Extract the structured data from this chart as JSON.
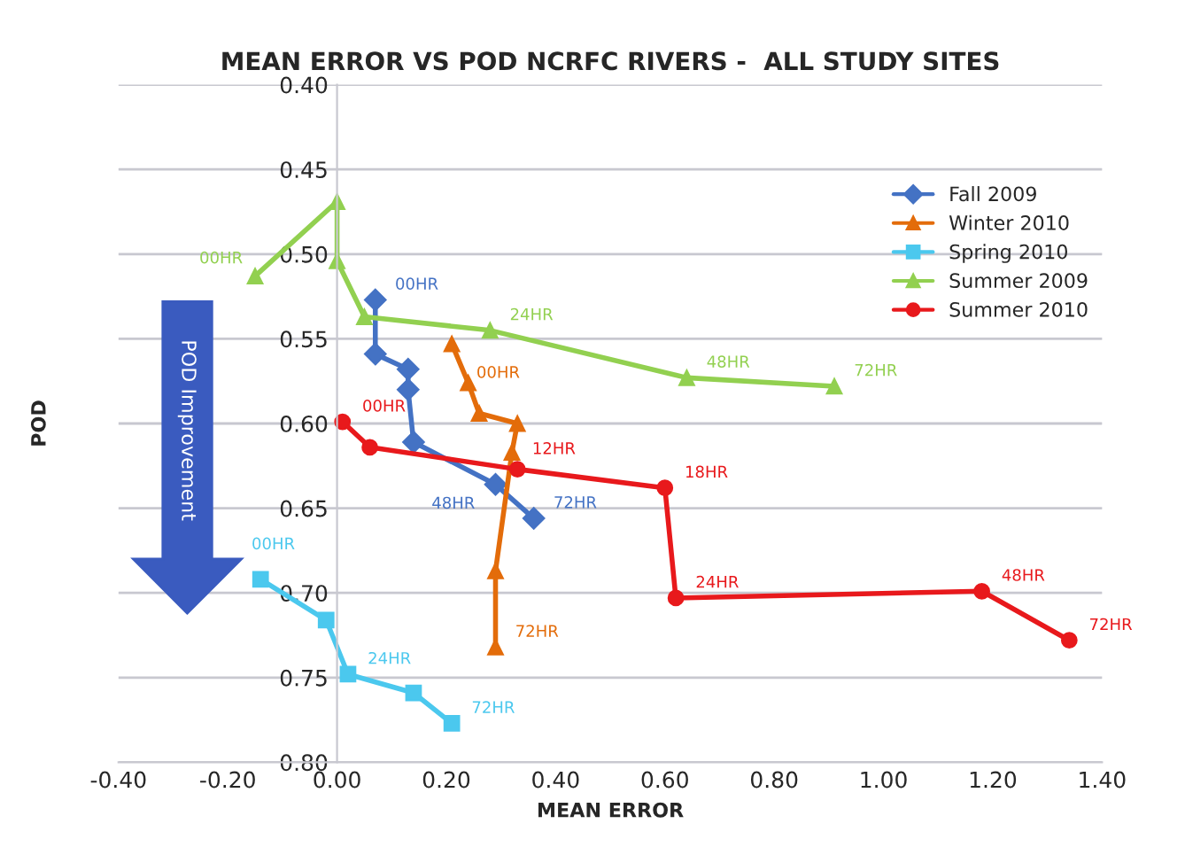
{
  "chart_data": {
    "type": "line",
    "title": "MEAN ERROR VS POD NCRFC RIVERS -  ALL STUDY SITES",
    "xlabel": "MEAN ERROR",
    "ylabel": "POD",
    "xlim": [
      -0.4,
      1.4
    ],
    "xticks": [
      {
        "value": -0.4,
        "label": "-0.40"
      },
      {
        "value": -0.2,
        "label": "-0.20"
      },
      {
        "value": 0,
        "label": "0.00"
      },
      {
        "value": 0.2,
        "label": "0.20"
      },
      {
        "value": 0.4,
        "label": "0.40"
      },
      {
        "value": 0.6,
        "label": "0.60"
      },
      {
        "value": 0.8,
        "label": "0.80"
      },
      {
        "value": 1.0,
        "label": "1.00"
      },
      {
        "value": 1.2,
        "label": "1.20"
      },
      {
        "value": 1.4,
        "label": "1.40"
      }
    ],
    "ylim": [
      0.8,
      0.4
    ],
    "yticks": [
      {
        "value": 0.4,
        "label": "0.40"
      },
      {
        "value": 0.45,
        "label": "0.45"
      },
      {
        "value": 0.5,
        "label": "0.50"
      },
      {
        "value": 0.55,
        "label": "0.55"
      },
      {
        "value": 0.6,
        "label": "0.60"
      },
      {
        "value": 0.65,
        "label": "0.65"
      },
      {
        "value": 0.7,
        "label": "0.70"
      },
      {
        "value": 0.75,
        "label": "0.75"
      },
      {
        "value": 0.8,
        "label": "0.80"
      }
    ],
    "grid": "y",
    "legend": "top right",
    "series": [
      {
        "name": "Fall 2009",
        "color": "#4472c4",
        "marker": "diamond",
        "x": [
          0.07,
          0.07,
          0.13,
          0.13,
          0.14,
          0.29,
          0.36
        ],
        "values": [
          0.527,
          0.559,
          0.568,
          0.58,
          0.611,
          0.636,
          0.656
        ]
      },
      {
        "name": "Winter 2010",
        "color": "#e36c0a",
        "marker": "triangle",
        "x": [
          0.21,
          0.24,
          0.26,
          0.33,
          0.32,
          0.29,
          0.29
        ],
        "values": [
          0.553,
          0.576,
          0.594,
          0.6,
          0.617,
          0.687,
          0.732
        ]
      },
      {
        "name": "Spring 2010",
        "color": "#4bc8ee",
        "marker": "square",
        "x": [
          -0.14,
          -0.02,
          0.02,
          0.14,
          0.21
        ],
        "values": [
          0.692,
          0.716,
          0.748,
          0.759,
          0.777
        ]
      },
      {
        "name": "Summer 2009",
        "color": "#92d050",
        "marker": "triangle",
        "x": [
          -0.15,
          0.0,
          0.0,
          0.05,
          0.28,
          0.64,
          0.91
        ],
        "values": [
          0.513,
          0.469,
          0.504,
          0.537,
          0.545,
          0.573,
          0.578
        ]
      },
      {
        "name": "Summer 2010",
        "color": "#e8191c",
        "marker": "circle",
        "x": [
          0.01,
          0.06,
          0.33,
          0.6,
          0.62,
          1.18,
          1.34
        ],
        "values": [
          0.599,
          0.614,
          0.627,
          0.638,
          0.703,
          0.699,
          0.728
        ]
      }
    ],
    "annotations": [
      {
        "text": "00HR",
        "x": 0.07,
        "y": 0.527
      },
      {
        "text": "48HR",
        "x": 0.29,
        "y": 0.636
      },
      {
        "text": "72HR",
        "x": 0.36,
        "y": 0.656
      },
      {
        "text": "00HR",
        "x": 0.21,
        "y": 0.553
      },
      {
        "text": "72HR",
        "x": 0.29,
        "y": 0.732
      },
      {
        "text": "00HR",
        "x": -0.14,
        "y": 0.692
      },
      {
        "text": "24HR",
        "x": 0.02,
        "y": 0.748
      },
      {
        "text": "72HR",
        "x": 0.21,
        "y": 0.777
      },
      {
        "text": "00HR",
        "x": -0.15,
        "y": 0.513
      },
      {
        "text": "24HR",
        "x": 0.28,
        "y": 0.545
      },
      {
        "text": "48HR",
        "x": 0.64,
        "y": 0.573
      },
      {
        "text": "72HR",
        "x": 0.91,
        "y": 0.578
      },
      {
        "text": "00HR",
        "x": 0.01,
        "y": 0.599
      },
      {
        "text": "12HR",
        "x": 0.33,
        "y": 0.627
      },
      {
        "text": "18HR",
        "x": 0.6,
        "y": 0.638
      },
      {
        "text": "24HR",
        "x": 0.62,
        "y": 0.703
      },
      {
        "text": "48HR",
        "x": 1.18,
        "y": 0.699
      },
      {
        "text": "72HR",
        "x": 1.34,
        "y": 0.728
      },
      "POD Improvement"
    ]
  }
}
